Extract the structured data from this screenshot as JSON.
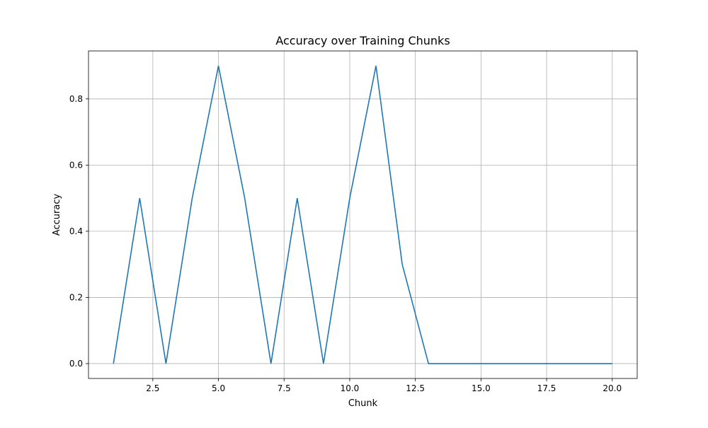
{
  "chart_data": {
    "type": "line",
    "title": "Accuracy over Training Chunks",
    "xlabel": "Chunk",
    "ylabel": "Accuracy",
    "xlim": [
      0.05,
      20.95
    ],
    "ylim": [
      -0.045,
      0.945
    ],
    "x_ticks": [
      2.5,
      5.0,
      7.5,
      10.0,
      12.5,
      15.0,
      17.5,
      20.0
    ],
    "x_tick_labels": [
      "2.5",
      "5.0",
      "7.5",
      "10.0",
      "12.5",
      "15.0",
      "17.5",
      "20.0"
    ],
    "y_ticks": [
      0.0,
      0.2,
      0.4,
      0.6,
      0.8
    ],
    "y_tick_labels": [
      "0.0",
      "0.2",
      "0.4",
      "0.6",
      "0.8"
    ],
    "grid": true,
    "legend": "none",
    "series": [
      {
        "color": "#1f77b4",
        "x": [
          1,
          2,
          3,
          4,
          5,
          6,
          7,
          8,
          9,
          10,
          11,
          12,
          13,
          14,
          15,
          16,
          17,
          18,
          19,
          20
        ],
        "y": [
          0.0,
          0.5,
          0.0,
          0.5,
          0.9,
          0.5,
          0.0,
          0.5,
          0.0,
          0.5,
          0.9,
          0.3,
          0.0,
          0.0,
          0.0,
          0.0,
          0.0,
          0.0,
          0.0,
          0.0
        ]
      }
    ]
  }
}
